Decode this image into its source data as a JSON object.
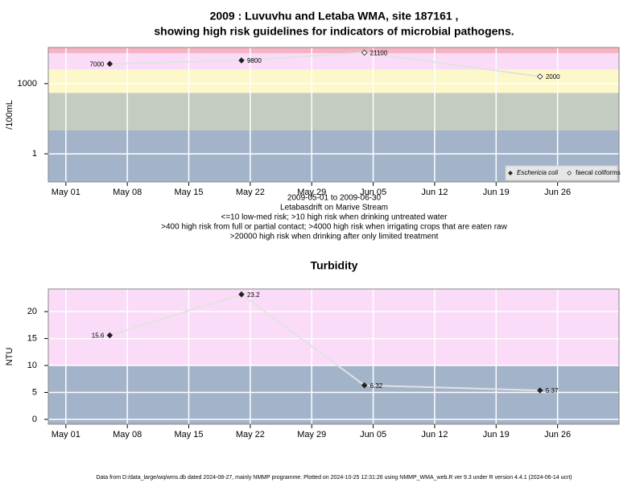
{
  "chart_data": [
    {
      "type": "line",
      "title": "2009 : Luvuvhu and Letaba WMA, site 187161 ,",
      "subtitle": "showing high risk guidelines for indicators of microbial pathogens.",
      "notes": [
        "2009-05-01 to 2009-06-30",
        "Letabasdrift on Marive Stream",
        "<=10 low-med risk; >10 high risk when drinking untreated water",
        ">400 high risk from full or partial contact; >4000 high risk when irrigating crops that are eaten raw",
        ">20000 high risk when drinking after only limited treatment"
      ],
      "ylabel": "/100mL",
      "log_y": true,
      "ylim": [
        0.063,
        35000
      ],
      "yticks": [
        1,
        1000
      ],
      "xlim": [
        "Apr 29",
        "Jul 03"
      ],
      "xticks": [
        "May 01",
        "May 08",
        "May 15",
        "May 22",
        "May 29",
        "Jun 05",
        "Jun 12",
        "Jun 19",
        "Jun 26"
      ],
      "grid": true,
      "legend": "bottom-right",
      "line_color": "#e2e2e2",
      "bands": [
        {
          "from": 0.063,
          "to": 10,
          "color": "#a3b3ca"
        },
        {
          "from": 10,
          "to": 400,
          "color": "#c4cbc1"
        },
        {
          "from": 400,
          "to": 4000,
          "color": "#fcf8c9"
        },
        {
          "from": 4000,
          "to": 20000,
          "color": "#fadcf8"
        },
        {
          "from": 20000,
          "to": 35000,
          "color": "#f6b3c3"
        }
      ],
      "series": [
        {
          "name": "Eschericia coli",
          "marker": "filled",
          "color": "#222222",
          "x": [
            "May 06",
            "May 21"
          ],
          "values": [
            7000,
            9800
          ]
        },
        {
          "name": "faecal coliforms",
          "marker": "open",
          "color": "#222222",
          "x": [
            "Jun 04",
            "Jun 24"
          ],
          "values": [
            21100,
            2000
          ]
        }
      ]
    },
    {
      "type": "line",
      "title": "Turbidity",
      "ylabel": "NTU",
      "log_y": false,
      "ylim": [
        -0.9,
        24.2
      ],
      "yticks": [
        0,
        5,
        10,
        15,
        20
      ],
      "xlim": [
        "Apr 29",
        "Jul 03"
      ],
      "xticks": [
        "May 01",
        "May 08",
        "May 15",
        "May 22",
        "May 29",
        "Jun 05",
        "Jun 12",
        "Jun 19",
        "Jun 26"
      ],
      "grid": true,
      "line_color": "#e2e2e2",
      "bands": [
        {
          "from": -0.9,
          "to": 10,
          "color": "#a3b3ca"
        },
        {
          "from": 10,
          "to": 24.2,
          "color": "#fadcf8"
        }
      ],
      "series": [
        {
          "name": "Turbidity",
          "marker": "filled",
          "color": "#222222",
          "x": [
            "May 06",
            "May 21",
            "Jun 04",
            "Jun 24"
          ],
          "values": [
            15.6,
            23.2,
            6.32,
            5.37
          ]
        }
      ]
    }
  ],
  "footer": "Data from D:/data_large/wq/wms.db dated 2024-08-27, mainly NMMP programme. Plotted on 2024-10-25 12:31:26 using NMMP_WMA_web.R ver 9.3 under R version 4.4.1 (2024-06-14 ucrt)"
}
